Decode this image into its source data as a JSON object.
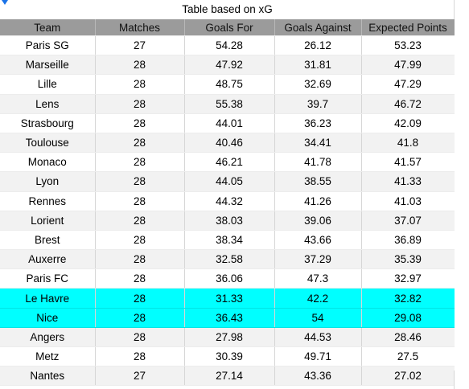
{
  "table": {
    "title": "Table based on xG",
    "columns": [
      "Team",
      "Matches",
      "Goals For",
      "Goals Against",
      "Expected Points"
    ],
    "rows": [
      {
        "team": "Paris SG",
        "matches": "27",
        "goals_for": "54.28",
        "goals_against": "26.12",
        "expected_points": "53.23",
        "highlight": false
      },
      {
        "team": "Marseille",
        "matches": "28",
        "goals_for": "47.92",
        "goals_against": "31.81",
        "expected_points": "47.99",
        "highlight": false
      },
      {
        "team": "Lille",
        "matches": "28",
        "goals_for": "48.75",
        "goals_against": "32.69",
        "expected_points": "47.29",
        "highlight": false
      },
      {
        "team": "Lens",
        "matches": "28",
        "goals_for": "55.38",
        "goals_against": "39.7",
        "expected_points": "46.72",
        "highlight": false
      },
      {
        "team": "Strasbourg",
        "matches": "28",
        "goals_for": "44.01",
        "goals_against": "36.23",
        "expected_points": "42.09",
        "highlight": false
      },
      {
        "team": "Toulouse",
        "matches": "28",
        "goals_for": "40.46",
        "goals_against": "34.41",
        "expected_points": "41.8",
        "highlight": false
      },
      {
        "team": "Monaco",
        "matches": "28",
        "goals_for": "46.21",
        "goals_against": "41.78",
        "expected_points": "41.57",
        "highlight": false
      },
      {
        "team": "Lyon",
        "matches": "28",
        "goals_for": "44.05",
        "goals_against": "38.55",
        "expected_points": "41.33",
        "highlight": false
      },
      {
        "team": "Rennes",
        "matches": "28",
        "goals_for": "44.32",
        "goals_against": "41.26",
        "expected_points": "41.03",
        "highlight": false
      },
      {
        "team": "Lorient",
        "matches": "28",
        "goals_for": "38.03",
        "goals_against": "39.06",
        "expected_points": "37.07",
        "highlight": false
      },
      {
        "team": "Brest",
        "matches": "28",
        "goals_for": "38.34",
        "goals_against": "43.66",
        "expected_points": "36.89",
        "highlight": false
      },
      {
        "team": "Auxerre",
        "matches": "28",
        "goals_for": "32.58",
        "goals_against": "37.29",
        "expected_points": "35.39",
        "highlight": false
      },
      {
        "team": "Paris FC",
        "matches": "28",
        "goals_for": "36.06",
        "goals_against": "47.3",
        "expected_points": "32.97",
        "highlight": false
      },
      {
        "team": "Le Havre",
        "matches": "28",
        "goals_for": "31.33",
        "goals_against": "42.2",
        "expected_points": "32.82",
        "highlight": true
      },
      {
        "team": "Nice",
        "matches": "28",
        "goals_for": "36.43",
        "goals_against": "54",
        "expected_points": "29.08",
        "highlight": true
      },
      {
        "team": "Angers",
        "matches": "28",
        "goals_for": "27.98",
        "goals_against": "44.53",
        "expected_points": "28.46",
        "highlight": false
      },
      {
        "team": "Metz",
        "matches": "28",
        "goals_for": "30.39",
        "goals_against": "49.71",
        "expected_points": "27.5",
        "highlight": false
      },
      {
        "team": "Nantes",
        "matches": "27",
        "goals_for": "27.14",
        "goals_against": "43.36",
        "expected_points": "27.02",
        "highlight": false
      }
    ]
  },
  "colors": {
    "header_bg": "#9b9b9b",
    "stripe_bg": "#f2f2f2",
    "highlight_bg": "#00ffff",
    "selection_marker": "#1a73e8"
  }
}
